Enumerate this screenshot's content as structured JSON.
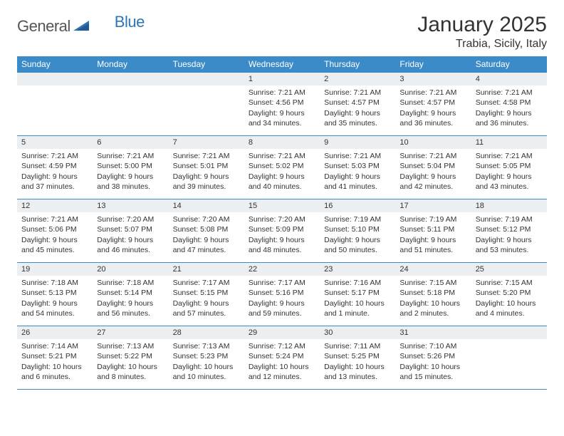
{
  "brand": {
    "part1": "General",
    "part2": "Blue",
    "shape_color": "#2f74b5",
    "text_color": "#555555"
  },
  "title": "January 2025",
  "location": "Trabia, Sicily, Italy",
  "colors": {
    "header_bg": "#3b8bc9",
    "header_fg": "#ffffff",
    "daynum_bg": "#eceff1",
    "border": "#3b8bc9",
    "page_bg": "#ffffff",
    "text": "#333333"
  },
  "weekdays": [
    "Sunday",
    "Monday",
    "Tuesday",
    "Wednesday",
    "Thursday",
    "Friday",
    "Saturday"
  ],
  "weeks": [
    [
      null,
      null,
      null,
      {
        "n": "1",
        "sr": "7:21 AM",
        "ss": "4:56 PM",
        "dl": "9 hours and 34 minutes."
      },
      {
        "n": "2",
        "sr": "7:21 AM",
        "ss": "4:57 PM",
        "dl": "9 hours and 35 minutes."
      },
      {
        "n": "3",
        "sr": "7:21 AM",
        "ss": "4:57 PM",
        "dl": "9 hours and 36 minutes."
      },
      {
        "n": "4",
        "sr": "7:21 AM",
        "ss": "4:58 PM",
        "dl": "9 hours and 36 minutes."
      }
    ],
    [
      {
        "n": "5",
        "sr": "7:21 AM",
        "ss": "4:59 PM",
        "dl": "9 hours and 37 minutes."
      },
      {
        "n": "6",
        "sr": "7:21 AM",
        "ss": "5:00 PM",
        "dl": "9 hours and 38 minutes."
      },
      {
        "n": "7",
        "sr": "7:21 AM",
        "ss": "5:01 PM",
        "dl": "9 hours and 39 minutes."
      },
      {
        "n": "8",
        "sr": "7:21 AM",
        "ss": "5:02 PM",
        "dl": "9 hours and 40 minutes."
      },
      {
        "n": "9",
        "sr": "7:21 AM",
        "ss": "5:03 PM",
        "dl": "9 hours and 41 minutes."
      },
      {
        "n": "10",
        "sr": "7:21 AM",
        "ss": "5:04 PM",
        "dl": "9 hours and 42 minutes."
      },
      {
        "n": "11",
        "sr": "7:21 AM",
        "ss": "5:05 PM",
        "dl": "9 hours and 43 minutes."
      }
    ],
    [
      {
        "n": "12",
        "sr": "7:21 AM",
        "ss": "5:06 PM",
        "dl": "9 hours and 45 minutes."
      },
      {
        "n": "13",
        "sr": "7:20 AM",
        "ss": "5:07 PM",
        "dl": "9 hours and 46 minutes."
      },
      {
        "n": "14",
        "sr": "7:20 AM",
        "ss": "5:08 PM",
        "dl": "9 hours and 47 minutes."
      },
      {
        "n": "15",
        "sr": "7:20 AM",
        "ss": "5:09 PM",
        "dl": "9 hours and 48 minutes."
      },
      {
        "n": "16",
        "sr": "7:19 AM",
        "ss": "5:10 PM",
        "dl": "9 hours and 50 minutes."
      },
      {
        "n": "17",
        "sr": "7:19 AM",
        "ss": "5:11 PM",
        "dl": "9 hours and 51 minutes."
      },
      {
        "n": "18",
        "sr": "7:19 AM",
        "ss": "5:12 PM",
        "dl": "9 hours and 53 minutes."
      }
    ],
    [
      {
        "n": "19",
        "sr": "7:18 AM",
        "ss": "5:13 PM",
        "dl": "9 hours and 54 minutes."
      },
      {
        "n": "20",
        "sr": "7:18 AM",
        "ss": "5:14 PM",
        "dl": "9 hours and 56 minutes."
      },
      {
        "n": "21",
        "sr": "7:17 AM",
        "ss": "5:15 PM",
        "dl": "9 hours and 57 minutes."
      },
      {
        "n": "22",
        "sr": "7:17 AM",
        "ss": "5:16 PM",
        "dl": "9 hours and 59 minutes."
      },
      {
        "n": "23",
        "sr": "7:16 AM",
        "ss": "5:17 PM",
        "dl": "10 hours and 1 minute."
      },
      {
        "n": "24",
        "sr": "7:15 AM",
        "ss": "5:18 PM",
        "dl": "10 hours and 2 minutes."
      },
      {
        "n": "25",
        "sr": "7:15 AM",
        "ss": "5:20 PM",
        "dl": "10 hours and 4 minutes."
      }
    ],
    [
      {
        "n": "26",
        "sr": "7:14 AM",
        "ss": "5:21 PM",
        "dl": "10 hours and 6 minutes."
      },
      {
        "n": "27",
        "sr": "7:13 AM",
        "ss": "5:22 PM",
        "dl": "10 hours and 8 minutes."
      },
      {
        "n": "28",
        "sr": "7:13 AM",
        "ss": "5:23 PM",
        "dl": "10 hours and 10 minutes."
      },
      {
        "n": "29",
        "sr": "7:12 AM",
        "ss": "5:24 PM",
        "dl": "10 hours and 12 minutes."
      },
      {
        "n": "30",
        "sr": "7:11 AM",
        "ss": "5:25 PM",
        "dl": "10 hours and 13 minutes."
      },
      {
        "n": "31",
        "sr": "7:10 AM",
        "ss": "5:26 PM",
        "dl": "10 hours and 15 minutes."
      },
      null
    ]
  ],
  "labels": {
    "sunrise": "Sunrise: ",
    "sunset": "Sunset: ",
    "daylight": "Daylight: "
  }
}
